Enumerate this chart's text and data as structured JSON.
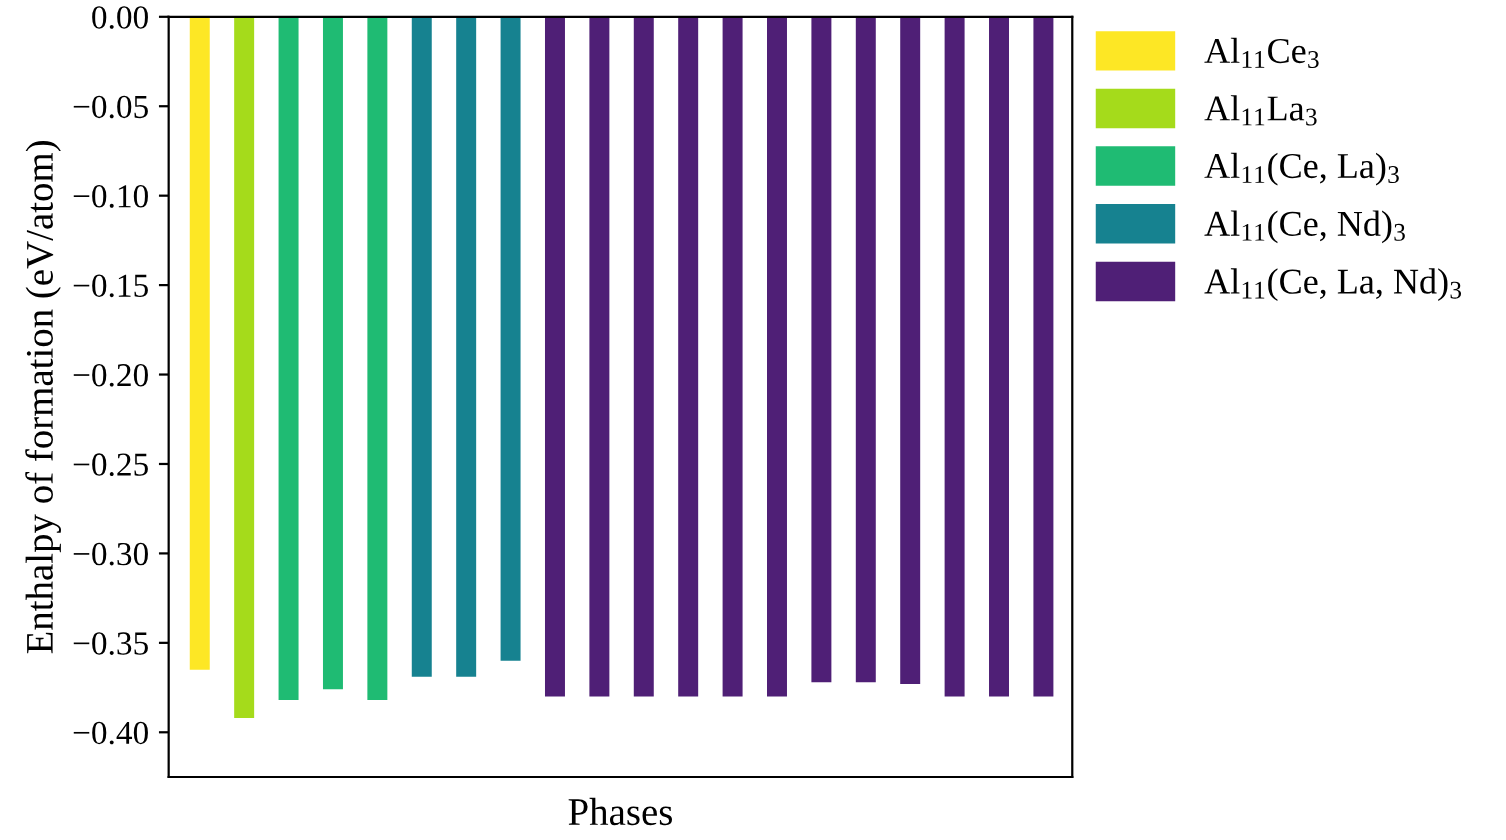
{
  "chart_data": {
    "type": "bar",
    "xlabel": "Phases",
    "ylabel": "Enthalpy of formation (eV/atom)",
    "categories": [
      null,
      null,
      null,
      null,
      null,
      null,
      null,
      null,
      null,
      null,
      null,
      null,
      null,
      null,
      null,
      null,
      null,
      null,
      null,
      null
    ],
    "series": [
      {
        "name": "Al$_{11}$Ce$_{3}$",
        "color": "#fde725",
        "values": [
          -0.365,
          null,
          null,
          null,
          null,
          null,
          null,
          null,
          null,
          null,
          null,
          null,
          null,
          null,
          null,
          null,
          null,
          null,
          null,
          null
        ]
      },
      {
        "name": "Al$_{11}$La$_{3}$",
        "color": "#a5db1b",
        "values": [
          null,
          -0.392,
          null,
          null,
          null,
          null,
          null,
          null,
          null,
          null,
          null,
          null,
          null,
          null,
          null,
          null,
          null,
          null,
          null,
          null
        ]
      },
      {
        "name": "Al$_{11}$(Ce, La)$_{3}$",
        "color": "#1fbb73",
        "values": [
          null,
          null,
          -0.382,
          -0.376,
          -0.382,
          null,
          null,
          null,
          null,
          null,
          null,
          null,
          null,
          null,
          null,
          null,
          null,
          null,
          null,
          null
        ]
      },
      {
        "name": "Al$_{11}$(Ce, Nd)$_{3}$",
        "color": "#168290",
        "values": [
          null,
          null,
          null,
          null,
          null,
          -0.369,
          -0.369,
          -0.36,
          null,
          null,
          null,
          null,
          null,
          null,
          null,
          null,
          null,
          null,
          null,
          null
        ]
      },
      {
        "name": "Al$_{11}$(Ce, La, Nd)$_{3}$",
        "color": "#4f1f76",
        "values": [
          null,
          null,
          null,
          null,
          null,
          null,
          null,
          null,
          -0.38,
          -0.38,
          -0.38,
          -0.38,
          -0.38,
          -0.38,
          -0.372,
          -0.372,
          -0.373,
          -0.38,
          -0.38,
          -0.38
        ]
      }
    ],
    "ylim": [
      -0.425,
      0.0
    ],
    "yticks": [
      {
        "value": 0,
        "label": "0.00"
      },
      {
        "value": -0.05,
        "label": "−0.05"
      },
      {
        "value": -0.1,
        "label": "−0.10"
      },
      {
        "value": -0.15,
        "label": "−0.15"
      },
      {
        "value": -0.2,
        "label": "−0.20"
      },
      {
        "value": -0.25,
        "label": "−0.25"
      },
      {
        "value": -0.3,
        "label": "−0.30"
      },
      {
        "value": -0.35,
        "label": "−0.35"
      },
      {
        "value": -0.4,
        "label": "−0.40"
      }
    ],
    "grid": false,
    "legend": "right"
  }
}
